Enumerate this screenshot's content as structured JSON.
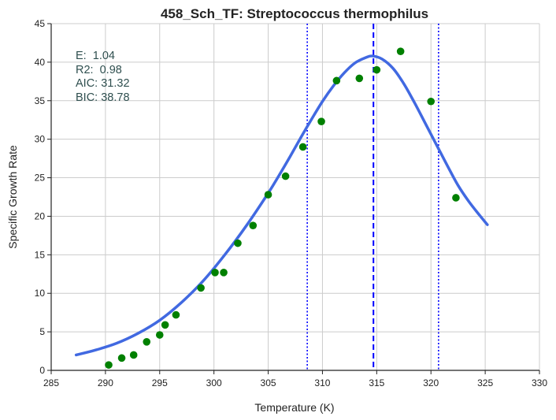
{
  "chart_data": {
    "type": "scatter",
    "title": "458_Sch_TF: Streptococcus thermophilus",
    "xlabel": "Temperature (K)",
    "ylabel": "Specific Growth Rate",
    "xlim": [
      285,
      330
    ],
    "ylim": [
      0,
      45
    ],
    "xticks": [
      "285",
      "290",
      "295",
      "300",
      "305",
      "310",
      "315",
      "320",
      "325",
      "330"
    ],
    "yticks": [
      "0",
      "5",
      "10",
      "15",
      "20",
      "25",
      "30",
      "35",
      "40",
      "45"
    ],
    "grid": true,
    "annotations": [
      "E:  1.04",
      "R2:  0.98",
      "AIC: 31.32",
      "BIC: 38.78"
    ],
    "colors": {
      "points": "#008000",
      "fit": "#4169e1",
      "vlines": "#0000ff"
    },
    "points": {
      "x": [
        290.3,
        291.5,
        292.6,
        293.8,
        295.0,
        295.5,
        296.5,
        298.8,
        300.1,
        300.9,
        302.2,
        303.6,
        305.0,
        306.6,
        308.2,
        309.9,
        311.3,
        313.4,
        315.0,
        317.2,
        320.0,
        322.3
      ],
      "y": [
        0.7,
        1.6,
        2.0,
        3.7,
        4.6,
        5.9,
        7.2,
        10.7,
        12.7,
        12.7,
        16.5,
        18.8,
        22.8,
        25.2,
        29.0,
        32.3,
        37.6,
        37.9,
        39.0,
        41.4,
        34.9,
        22.4
      ]
    },
    "fit_curve": {
      "x": [
        287.3,
        289.0,
        291.0,
        293.0,
        295.0,
        297.0,
        299.0,
        301.0,
        303.0,
        305.0,
        306.0,
        307.0,
        308.0,
        309.0,
        310.0,
        311.0,
        312.0,
        313.0,
        314.0,
        314.6,
        315.5,
        316.5,
        317.5,
        318.5,
        319.5,
        320.5,
        321.5,
        322.5,
        323.5,
        324.5,
        325.2
      ],
      "y": [
        2.0,
        2.6,
        3.5,
        4.8,
        6.5,
        8.8,
        11.6,
        15.0,
        18.8,
        23.0,
        25.3,
        27.7,
        30.2,
        32.6,
        34.9,
        36.9,
        38.6,
        39.9,
        40.6,
        40.8,
        40.4,
        39.2,
        37.2,
        34.7,
        32.0,
        29.3,
        26.6,
        24.0,
        21.9,
        20.1,
        18.9
      ]
    },
    "vlines": {
      "solid": [],
      "dashed": [
        314.7
      ],
      "dotted": [
        308.6,
        320.7
      ]
    }
  }
}
